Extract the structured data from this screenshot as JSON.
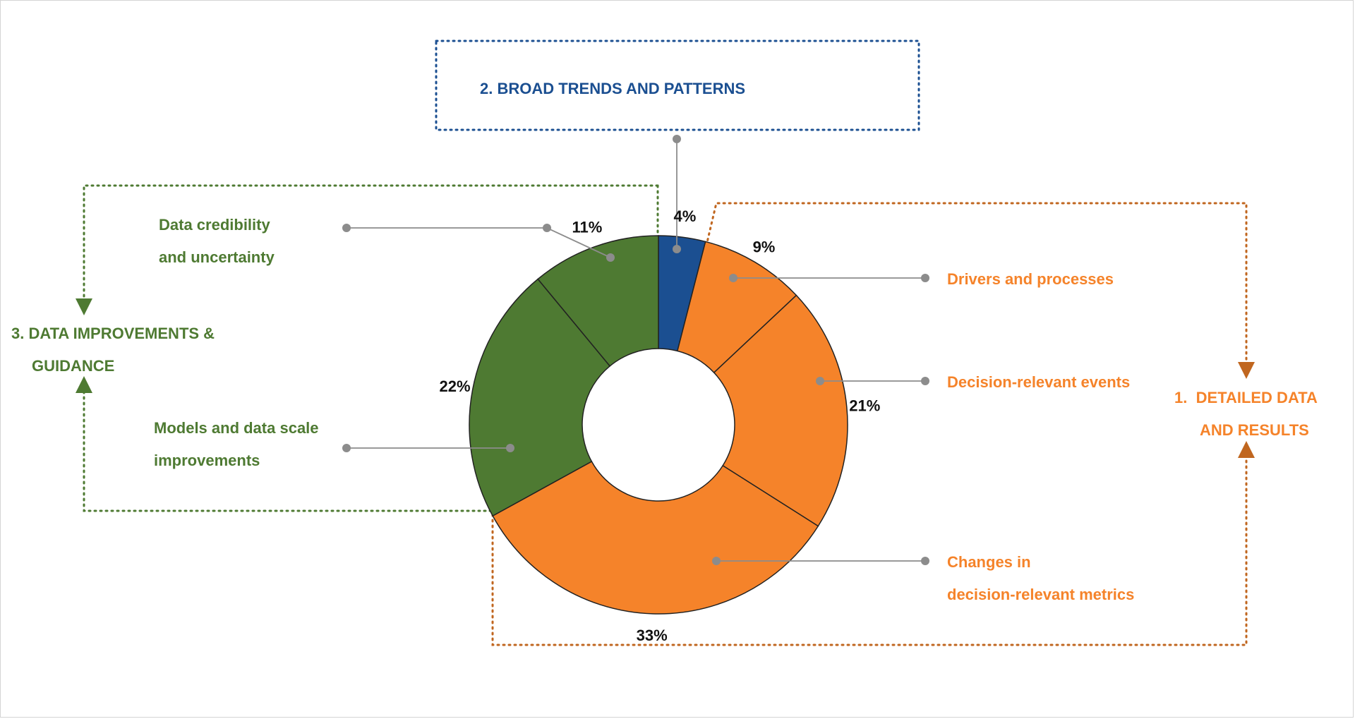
{
  "colors": {
    "orange": "#f5832a",
    "orange_dark": "#c0661f",
    "blue": "#1b4f91",
    "green": "#4e7a32",
    "connector": "#8c8c8c",
    "slice_edge": "#222222"
  },
  "groups": {
    "detailed": {
      "line1": "1.  DETAILED DATA",
      "line2": "AND RESULTS",
      "color": "#f5832a",
      "border": "#c0661f"
    },
    "broad": {
      "label": "2. BROAD TRENDS AND PATTERNS",
      "color": "#1b4f91"
    },
    "improve": {
      "line1": "3. DATA IMPROVEMENTS &",
      "line2": "GUIDANCE",
      "color": "#4e7a32"
    }
  },
  "chart_data": {
    "type": "pie",
    "donut": true,
    "slices": [
      {
        "value": 4,
        "label": "4%",
        "color": "#1b4f91",
        "category": [
          "2. BROAD TRENDS AND PATTERNS"
        ]
      },
      {
        "value": 9,
        "label": "9%",
        "color": "#f5832a",
        "category": [
          "Drivers and processes"
        ]
      },
      {
        "value": 21,
        "label": "21%",
        "color": "#f5832a",
        "category": [
          "Decision-relevant events"
        ]
      },
      {
        "value": 33,
        "label": "33%",
        "color": "#f5832a",
        "category": [
          "Changes in",
          "decision-relevant metrics"
        ]
      },
      {
        "value": 22,
        "label": "22%",
        "color": "#4e7a32",
        "category": [
          "Models and data scale",
          "improvements"
        ]
      },
      {
        "value": 11,
        "label": "11%",
        "color": "#4e7a32",
        "category": [
          "Data credibility",
          "and uncertainty"
        ]
      }
    ]
  }
}
